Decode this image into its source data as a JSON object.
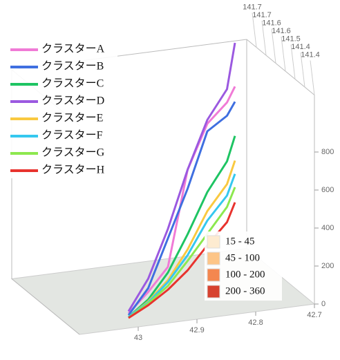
{
  "chart_data": {
    "type": "line3d",
    "lat": [
      43.0,
      42.95,
      42.9,
      42.85,
      42.8,
      42.75,
      42.72
    ],
    "lon": [
      141.45,
      141.5,
      141.55,
      141.6,
      141.65,
      141.7,
      141.75
    ],
    "series": [
      {
        "name": "クラスターA",
        "color": "#f07ad6",
        "values": [
          30,
          80,
          150,
          600,
          780,
          830,
          860
        ]
      },
      {
        "name": "クラスターB",
        "color": "#3f6fe0",
        "values": [
          20,
          100,
          300,
          500,
          740,
          760,
          780
        ]
      },
      {
        "name": "クラスターC",
        "color": "#1ec463",
        "values": [
          10,
          40,
          120,
          260,
          420,
          520,
          600
        ]
      },
      {
        "name": "クラスターD",
        "color": "#9b59e0",
        "values": [
          40,
          150,
          350,
          600,
          800,
          900,
          1090
        ]
      },
      {
        "name": "クラスターE",
        "color": "#f9c940",
        "values": [
          10,
          30,
          80,
          180,
          320,
          400,
          470
        ]
      },
      {
        "name": "クラスターF",
        "color": "#35c8ef",
        "values": [
          10,
          25,
          70,
          150,
          270,
          340,
          400
        ]
      },
      {
        "name": "クラスターG",
        "color": "#8de84f",
        "values": [
          5,
          20,
          50,
          120,
          200,
          280,
          330
        ]
      },
      {
        "name": "クラスターH",
        "color": "#e8332e",
        "values": [
          5,
          10,
          30,
          70,
          140,
          200,
          250
        ]
      }
    ],
    "xlim": [
      42.7,
      43.1
    ],
    "xticks": [
      43,
      42.9,
      42.8,
      42.7
    ],
    "ylim": [
      141.4,
      141.75
    ],
    "yticks": [
      {
        "value": 141.7,
        "label": "141.7"
      },
      {
        "value": 141.65,
        "label": "141.7"
      },
      {
        "value": 141.6,
        "label": "141.6"
      },
      {
        "value": 141.55,
        "label": "141.6"
      },
      {
        "value": 141.5,
        "label": "141.5"
      },
      {
        "value": 141.45,
        "label": "141.4"
      },
      {
        "value": 141.4,
        "label": "141.4"
      }
    ],
    "zlim": [
      0,
      1100
    ],
    "zticks": [
      0,
      200,
      400,
      600,
      800
    ],
    "color_legend": [
      {
        "label": "15 - 45",
        "color": "#fdebd0"
      },
      {
        "label": "45 - 100",
        "color": "#fdc587"
      },
      {
        "label": "100 - 200",
        "color": "#f4874f"
      },
      {
        "label": "200 - 360",
        "color": "#d7422f"
      }
    ]
  }
}
